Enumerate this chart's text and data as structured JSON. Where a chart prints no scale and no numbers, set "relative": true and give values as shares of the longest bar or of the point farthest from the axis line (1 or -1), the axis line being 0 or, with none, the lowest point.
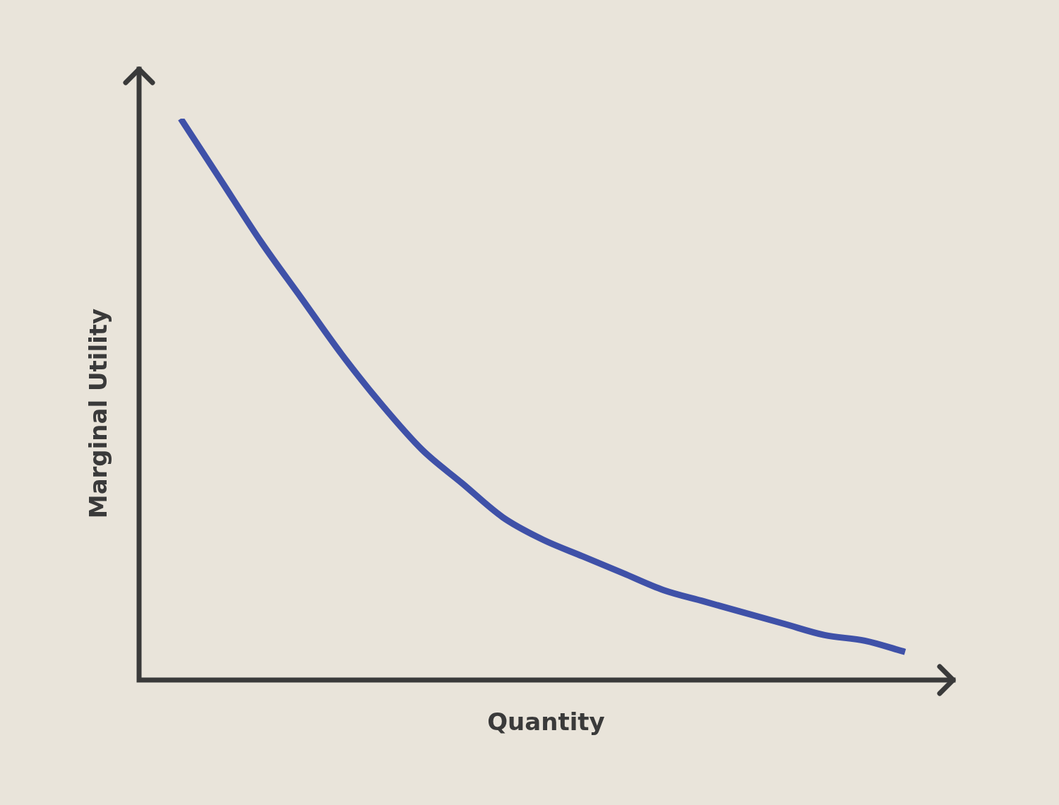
{
  "chart_data": {
    "type": "line",
    "xlabel": "Quantity",
    "ylabel": "Marginal Utility",
    "relative": true,
    "legend": false,
    "categories": [
      null,
      null,
      null,
      null,
      null,
      null,
      null,
      null,
      null,
      null,
      null,
      null,
      null,
      null,
      null,
      null,
      null,
      null,
      null
    ],
    "series": [
      {
        "color": "#3f51a8",
        "values": [
          1,
          0.89,
          0.78,
          0.68,
          0.58,
          0.49,
          0.41,
          0.35,
          0.29,
          0.25,
          0.22,
          0.19,
          0.16,
          0.14,
          0.12,
          0.1,
          0.08,
          0.07,
          0.05
        ]
      }
    ]
  }
}
